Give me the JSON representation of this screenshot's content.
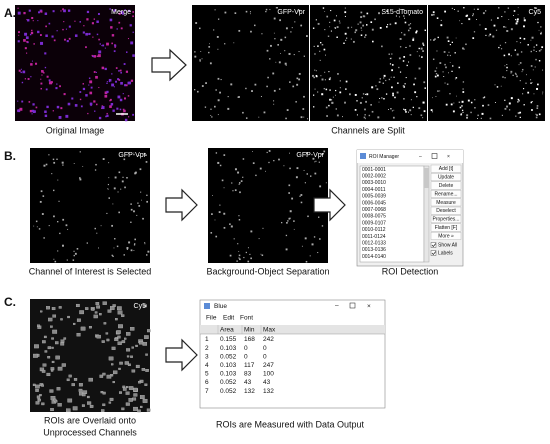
{
  "panel_a": {
    "label": "A.",
    "merge_label": "Merge",
    "original_caption": "Original Image",
    "split_labels": [
      "GFP-Vpr",
      "S15-dTomato",
      "Cy5"
    ],
    "split_caption": "Channels are Split"
  },
  "panel_b": {
    "label": "B.",
    "selected_label": "GFP-Vpr",
    "selected_caption": "Channel of Interest is Selected",
    "separated_label": "GFP-Vpr",
    "separated_caption": "Background-Object Separation",
    "roi_caption": "ROI Detection",
    "roi_manager": {
      "title": "ROI Manager",
      "items": [
        "0001-0001",
        "0002-0002",
        "0003-0010",
        "0004-0011",
        "0005-0039",
        "0006-0045",
        "0007-0068",
        "0008-0075",
        "0009-0107",
        "0010-0112",
        "0011-0124",
        "0012-0133",
        "0013-0136",
        "0014-0140"
      ],
      "buttons": [
        "Add [t]",
        "Update",
        "Delete",
        "Rename...",
        "Measure",
        "Deselect",
        "Properties...",
        "Flatten [F]",
        "More »"
      ],
      "checkboxes": [
        "Show All",
        "Labels"
      ]
    }
  },
  "panel_c": {
    "label": "C.",
    "image_label": "Cy5",
    "overlay_caption": [
      "ROIs are Overlaid onto",
      "Unprocessed Channels"
    ],
    "output_caption": "ROIs are Measured with Data Output",
    "table_window": {
      "title": "Blue",
      "menu": [
        "File",
        "Edit",
        "Font"
      ],
      "columns": [
        "Area",
        "Min",
        "Max"
      ],
      "rows": [
        [
          1,
          0.155,
          168,
          242
        ],
        [
          2,
          0.103,
          0,
          0
        ],
        [
          3,
          0.052,
          0,
          0
        ],
        [
          4,
          0.103,
          117,
          247
        ],
        [
          5,
          0.103,
          83,
          100
        ],
        [
          6,
          0.052,
          43,
          43
        ],
        [
          7,
          0.052,
          132,
          132
        ]
      ]
    }
  }
}
